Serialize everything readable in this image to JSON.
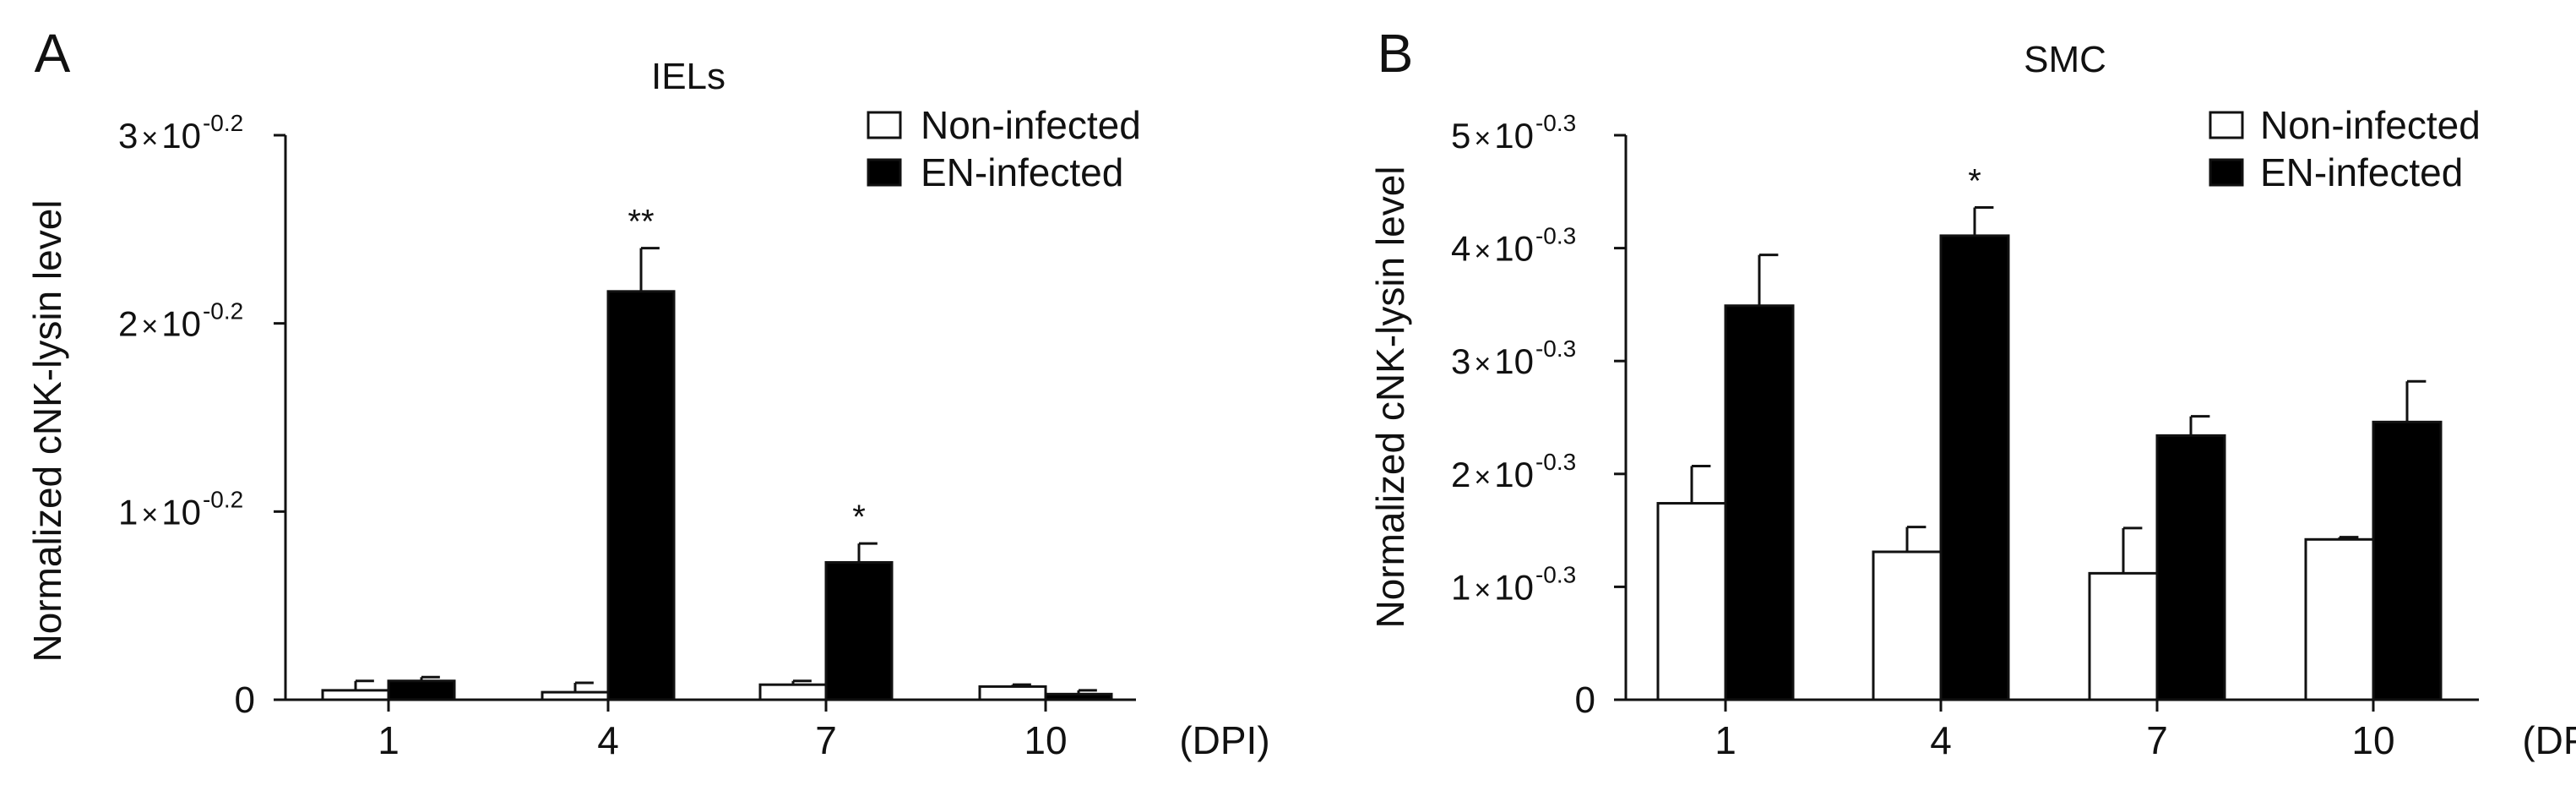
{
  "chart_data": [
    {
      "panel_label": "A",
      "type": "bar",
      "title": "IELs",
      "ylabel": "Normalized cNK-lysin level",
      "xlabel": "",
      "x_unit_label": "(DPI)",
      "categories": [
        "1",
        "4",
        "7",
        "10"
      ],
      "ylim": [
        0,
        3
      ],
      "yticks": [
        {
          "value": 0,
          "label": "0",
          "mantissa": "",
          "times": "",
          "base": "",
          "exponent": ""
        },
        {
          "value": 1,
          "label": "",
          "mantissa": "1",
          "times": "×",
          "base": "10",
          "exponent": "-0.2"
        },
        {
          "value": 2,
          "label": "",
          "mantissa": "2",
          "times": "×",
          "base": "10",
          "exponent": "-0.2"
        },
        {
          "value": 3,
          "label": "",
          "mantissa": "3",
          "times": "×",
          "base": "10",
          "exponent": "-0.2"
        }
      ],
      "legend_position": "top-right",
      "series": [
        {
          "name": "Non-infected",
          "fill": "#ffffff",
          "values": [
            0.05,
            0.04,
            0.08,
            0.07
          ],
          "errors": [
            0.05,
            0.05,
            0.02,
            0.01
          ]
        },
        {
          "name": "EN-infected",
          "fill": "#000000",
          "values": [
            0.1,
            2.17,
            0.73,
            0.03
          ],
          "errors": [
            0.02,
            0.23,
            0.1,
            0.02
          ]
        }
      ],
      "annotations": [
        {
          "text": "**",
          "category_index": 1,
          "series_index": 1
        },
        {
          "text": "*",
          "category_index": 2,
          "series_index": 1
        }
      ]
    },
    {
      "panel_label": "B",
      "type": "bar",
      "title": "SMC",
      "ylabel": "Normalized cNK-lysin level",
      "xlabel": "",
      "x_unit_label": "(DPI)",
      "categories": [
        "1",
        "4",
        "7",
        "10"
      ],
      "ylim": [
        0,
        5
      ],
      "yticks": [
        {
          "value": 0,
          "label": "0",
          "mantissa": "",
          "times": "",
          "base": "",
          "exponent": ""
        },
        {
          "value": 1,
          "label": "",
          "mantissa": "1",
          "times": "×",
          "base": "10",
          "exponent": "-0.3"
        },
        {
          "value": 2,
          "label": "",
          "mantissa": "2",
          "times": "×",
          "base": "10",
          "exponent": "-0.3"
        },
        {
          "value": 3,
          "label": "",
          "mantissa": "3",
          "times": "×",
          "base": "10",
          "exponent": "-0.3"
        },
        {
          "value": 4,
          "label": "",
          "mantissa": "4",
          "times": "×",
          "base": "10",
          "exponent": "-0.3"
        },
        {
          "value": 5,
          "label": "",
          "mantissa": "5",
          "times": "×",
          "base": "10",
          "exponent": "-0.3"
        }
      ],
      "legend_position": "top-right",
      "series": [
        {
          "name": "Non-infected",
          "fill": "#ffffff",
          "values": [
            1.74,
            1.31,
            1.12,
            1.42
          ],
          "errors": [
            0.33,
            0.22,
            0.4,
            0.02
          ]
        },
        {
          "name": "EN-infected",
          "fill": "#000000",
          "values": [
            3.49,
            4.11,
            2.34,
            2.46
          ],
          "errors": [
            0.45,
            0.25,
            0.17,
            0.36
          ]
        }
      ],
      "annotations": [
        {
          "text": "*",
          "category_index": 1,
          "series_index": 1
        }
      ]
    }
  ]
}
